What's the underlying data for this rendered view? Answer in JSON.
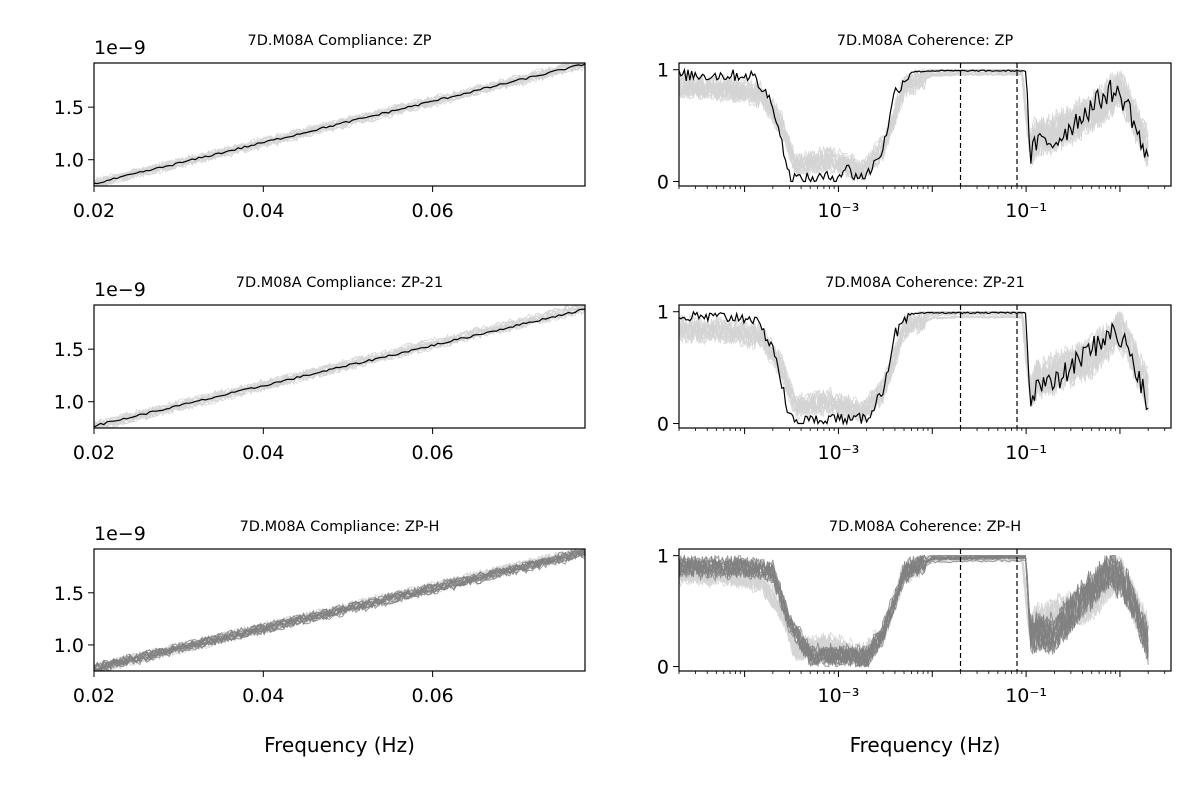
{
  "figure": {
    "background": "#ffffff",
    "colors": {
      "individual": "#d3d3d3",
      "individual_dark": "#808080",
      "mean": "#000000"
    }
  },
  "chart_data": [
    {
      "type": "line",
      "title": "7D.M08A Compliance: ZP",
      "xlabel": "",
      "xscale": "linear",
      "xlim": [
        0.02,
        0.078
      ],
      "ylim": [
        7.5e-10,
        1.92e-09
      ],
      "y_offset_text": "1e−9",
      "xticks": [
        {
          "v": 0.02,
          "label": "0.02"
        },
        {
          "v": 0.04,
          "label": "0.04"
        },
        {
          "v": 0.06,
          "label": "0.06"
        }
      ],
      "yticks": [
        {
          "v": 1e-09,
          "label": "1.0"
        },
        {
          "v": 1.5e-09,
          "label": "1.5"
        }
      ],
      "series": [
        {
          "style": "individual",
          "x": [
            0.02,
            0.078
          ],
          "y": [
            7.7e-10,
            1.91e-09
          ]
        },
        {
          "style": "mean",
          "x": [
            0.02,
            0.078
          ],
          "y": [
            7.7e-10,
            1.91e-09
          ]
        }
      ]
    },
    {
      "type": "line",
      "title": "7D.M08A Coherence: ZP",
      "xlabel": "",
      "xscale": "log",
      "xlim": [
        2e-05,
        3.5
      ],
      "ylim": [
        -0.04,
        1.06
      ],
      "xticks": [
        {
          "v": 0.001,
          "label": "10⁻³"
        },
        {
          "v": 0.1,
          "label": "10⁻¹"
        }
      ],
      "yticks": [
        {
          "v": 0,
          "label": "0"
        },
        {
          "v": 1,
          "label": "1"
        }
      ],
      "vlines": [
        0.02,
        0.08
      ],
      "series": [
        {
          "style": "individual",
          "x": [
            2e-05,
            7e-05,
            0.00015,
            0.00025,
            0.00035,
            0.0008,
            0.0018,
            0.003,
            0.005,
            0.01,
            0.02,
            0.05,
            0.09,
            0.11,
            0.13,
            0.2,
            0.5,
            1.0,
            2.0
          ],
          "y": [
            0.85,
            0.83,
            0.78,
            0.5,
            0.15,
            0.2,
            0.1,
            0.3,
            0.85,
            0.98,
            0.99,
            0.99,
            0.99,
            0.3,
            0.4,
            0.45,
            0.6,
            0.85,
            0.3
          ]
        },
        {
          "style": "mean",
          "x": [
            2e-05,
            0.00012,
            0.0002,
            0.0003,
            0.0004,
            0.0006,
            0.001,
            0.0012,
            0.0015,
            0.002,
            0.003,
            0.004,
            0.006,
            0.01,
            0.05,
            0.1,
            0.11,
            0.13,
            0.2,
            0.4,
            0.8,
            1.2,
            2.0
          ],
          "y": [
            0.95,
            0.95,
            0.7,
            0.05,
            0.02,
            0.03,
            0.05,
            0.13,
            0.05,
            0.05,
            0.3,
            0.8,
            0.98,
            0.99,
            0.99,
            0.99,
            0.2,
            0.35,
            0.35,
            0.6,
            0.82,
            0.7,
            0.15
          ]
        }
      ]
    },
    {
      "type": "line",
      "title": "7D.M08A Compliance: ZP-21",
      "xlabel": "",
      "xscale": "linear",
      "xlim": [
        0.02,
        0.078
      ],
      "ylim": [
        7.5e-10,
        1.92e-09
      ],
      "y_offset_text": "1e−9",
      "xticks": [
        {
          "v": 0.02,
          "label": "0.02"
        },
        {
          "v": 0.04,
          "label": "0.04"
        },
        {
          "v": 0.06,
          "label": "0.06"
        }
      ],
      "yticks": [
        {
          "v": 1e-09,
          "label": "1.0"
        },
        {
          "v": 1.5e-09,
          "label": "1.5"
        }
      ],
      "series": [
        {
          "style": "individual",
          "x": [
            0.02,
            0.078
          ],
          "y": [
            7.7e-10,
            1.9e-09
          ]
        },
        {
          "style": "mean",
          "x": [
            0.02,
            0.078
          ],
          "y": [
            7.7e-10,
            1.88e-09
          ]
        }
      ]
    },
    {
      "type": "line",
      "title": "7D.M08A Coherence: ZP-21",
      "xlabel": "",
      "xscale": "log",
      "xlim": [
        2e-05,
        3.5
      ],
      "ylim": [
        -0.04,
        1.06
      ],
      "xticks": [
        {
          "v": 0.001,
          "label": "10⁻³"
        },
        {
          "v": 0.1,
          "label": "10⁻¹"
        }
      ],
      "yticks": [
        {
          "v": 0,
          "label": "0"
        },
        {
          "v": 1,
          "label": "1"
        }
      ],
      "vlines": [
        0.02,
        0.08
      ],
      "series": [
        {
          "style": "individual",
          "x": [
            2e-05,
            7e-05,
            0.00015,
            0.00025,
            0.00035,
            0.0008,
            0.0018,
            0.003,
            0.005,
            0.01,
            0.02,
            0.05,
            0.09,
            0.11,
            0.13,
            0.2,
            0.5,
            1.0,
            2.0
          ],
          "y": [
            0.85,
            0.83,
            0.78,
            0.5,
            0.15,
            0.2,
            0.1,
            0.3,
            0.85,
            0.98,
            0.99,
            0.99,
            0.99,
            0.3,
            0.4,
            0.45,
            0.6,
            0.85,
            0.3
          ]
        },
        {
          "style": "mean",
          "x": [
            2e-05,
            0.00012,
            0.0002,
            0.0003,
            0.0004,
            0.0006,
            0.001,
            0.0012,
            0.0015,
            0.002,
            0.003,
            0.004,
            0.006,
            0.01,
            0.05,
            0.1,
            0.11,
            0.13,
            0.2,
            0.4,
            0.8,
            1.2,
            2.0
          ],
          "y": [
            0.95,
            0.95,
            0.7,
            0.05,
            0.02,
            0.03,
            0.05,
            0.03,
            0.03,
            0.05,
            0.3,
            0.8,
            0.98,
            0.99,
            0.99,
            0.99,
            0.2,
            0.35,
            0.35,
            0.6,
            0.82,
            0.7,
            0.15
          ]
        }
      ]
    },
    {
      "type": "line",
      "title": "7D.M08A Compliance: ZP-H",
      "xlabel": "Frequency (Hz)",
      "xscale": "linear",
      "xlim": [
        0.02,
        0.078
      ],
      "ylim": [
        7.5e-10,
        1.92e-09
      ],
      "y_offset_text": "1e−9",
      "xticks": [
        {
          "v": 0.02,
          "label": "0.02"
        },
        {
          "v": 0.04,
          "label": "0.04"
        },
        {
          "v": 0.06,
          "label": "0.06"
        }
      ],
      "yticks": [
        {
          "v": 1e-09,
          "label": "1.0"
        },
        {
          "v": 1.5e-09,
          "label": "1.5"
        }
      ],
      "series": [
        {
          "style": "individual",
          "x": [
            0.02,
            0.078
          ],
          "y": [
            7.7e-10,
            1.9e-09
          ]
        },
        {
          "style": "individual_dark",
          "x": [
            0.02,
            0.078
          ],
          "y": [
            7.7e-10,
            1.88e-09
          ]
        }
      ]
    },
    {
      "type": "line",
      "title": "7D.M08A Coherence: ZP-H",
      "xlabel": "Frequency (Hz)",
      "xscale": "log",
      "xlim": [
        2e-05,
        3.5
      ],
      "ylim": [
        -0.04,
        1.06
      ],
      "xticks": [
        {
          "v": 0.001,
          "label": "10⁻³"
        },
        {
          "v": 0.1,
          "label": "10⁻¹"
        }
      ],
      "yticks": [
        {
          "v": 0,
          "label": "0"
        },
        {
          "v": 1,
          "label": "1"
        }
      ],
      "vlines": [
        0.02,
        0.08
      ],
      "series": [
        {
          "style": "individual",
          "x": [
            2e-05,
            7e-05,
            0.00015,
            0.00025,
            0.00035,
            0.0008,
            0.0018,
            0.003,
            0.005,
            0.01,
            0.02,
            0.05,
            0.09,
            0.11,
            0.13,
            0.2,
            0.5,
            1.0,
            2.0
          ],
          "y": [
            0.85,
            0.83,
            0.78,
            0.5,
            0.15,
            0.2,
            0.1,
            0.3,
            0.85,
            0.98,
            0.99,
            0.99,
            0.99,
            0.3,
            0.4,
            0.45,
            0.6,
            0.85,
            0.3
          ]
        },
        {
          "style": "individual_dark",
          "x": [
            2e-05,
            0.0001,
            0.0002,
            0.0003,
            0.0005,
            0.001,
            0.002,
            0.003,
            0.005,
            0.01,
            0.05,
            0.1,
            0.11,
            0.2,
            0.4,
            0.8,
            1.2,
            2.0
          ],
          "y": [
            0.9,
            0.9,
            0.85,
            0.4,
            0.1,
            0.1,
            0.08,
            0.3,
            0.85,
            0.98,
            0.99,
            0.99,
            0.3,
            0.3,
            0.6,
            0.9,
            0.7,
            0.2
          ]
        }
      ]
    }
  ]
}
